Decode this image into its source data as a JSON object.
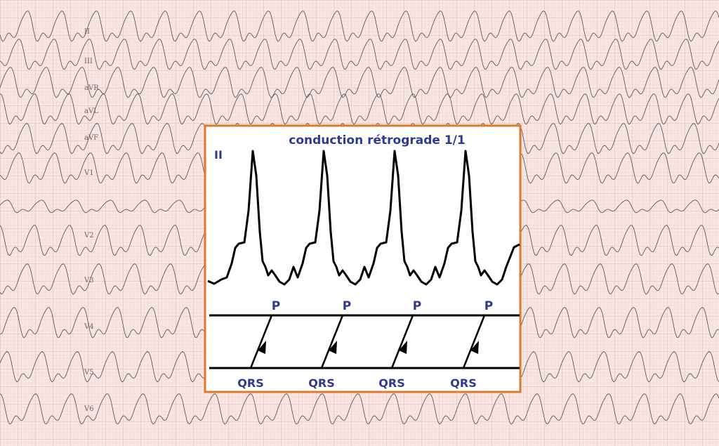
{
  "ecg_leads": [
    "II",
    "III",
    "aVR",
    "aVL",
    "aVF",
    "V1",
    "V2",
    "V3",
    "V4",
    "V5",
    "V6"
  ],
  "inset": {
    "title": "conduction rétrograde 1/1",
    "lead": "II",
    "p_labels": [
      "P",
      "P",
      "P",
      "P"
    ],
    "qrs_labels": [
      "QRS",
      "QRS",
      "QRS",
      "QRS"
    ]
  }
}
